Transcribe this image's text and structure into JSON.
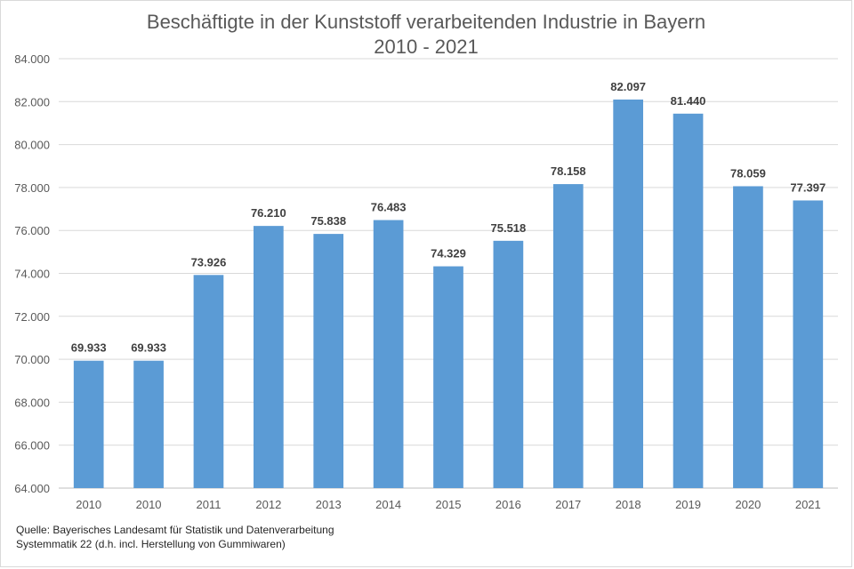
{
  "chart_data": {
    "type": "bar",
    "title": "Beschäftigte in der Kunststoff verarbeitenden Industrie in Bayern",
    "subtitle": "2010 - 2021",
    "categories": [
      "2010",
      "2010",
      "2011",
      "2012",
      "2013",
      "2014",
      "2015",
      "2016",
      "2017",
      "2018",
      "2019",
      "2020",
      "2021"
    ],
    "values": [
      69933,
      69933,
      73926,
      76210,
      75838,
      76483,
      74329,
      75518,
      78158,
      82097,
      81440,
      78059,
      77397
    ],
    "value_labels": [
      "69.933",
      "69.933",
      "73.926",
      "76.210",
      "75.838",
      "76.483",
      "74.329",
      "75.518",
      "78.158",
      "82.097",
      "81.440",
      "78.059",
      "77.397"
    ],
    "ylim": [
      64000,
      84000
    ],
    "y_ticks": [
      64000,
      66000,
      68000,
      70000,
      72000,
      74000,
      76000,
      78000,
      80000,
      82000,
      84000
    ],
    "y_tick_labels": [
      "64.000",
      "66.000",
      "68.000",
      "70.000",
      "72.000",
      "74.000",
      "76.000",
      "78.000",
      "80.000",
      "82.000",
      "84.000"
    ],
    "grid": true,
    "legend": "none",
    "bar_color": "#5b9bd5"
  },
  "source": {
    "line1": "Quelle:  Bayerisches Landesamt für Statistik und Datenverarbeitung",
    "line2": "Systemmatik 22 (d.h. incl. Herstellung von Gummiwaren)"
  }
}
